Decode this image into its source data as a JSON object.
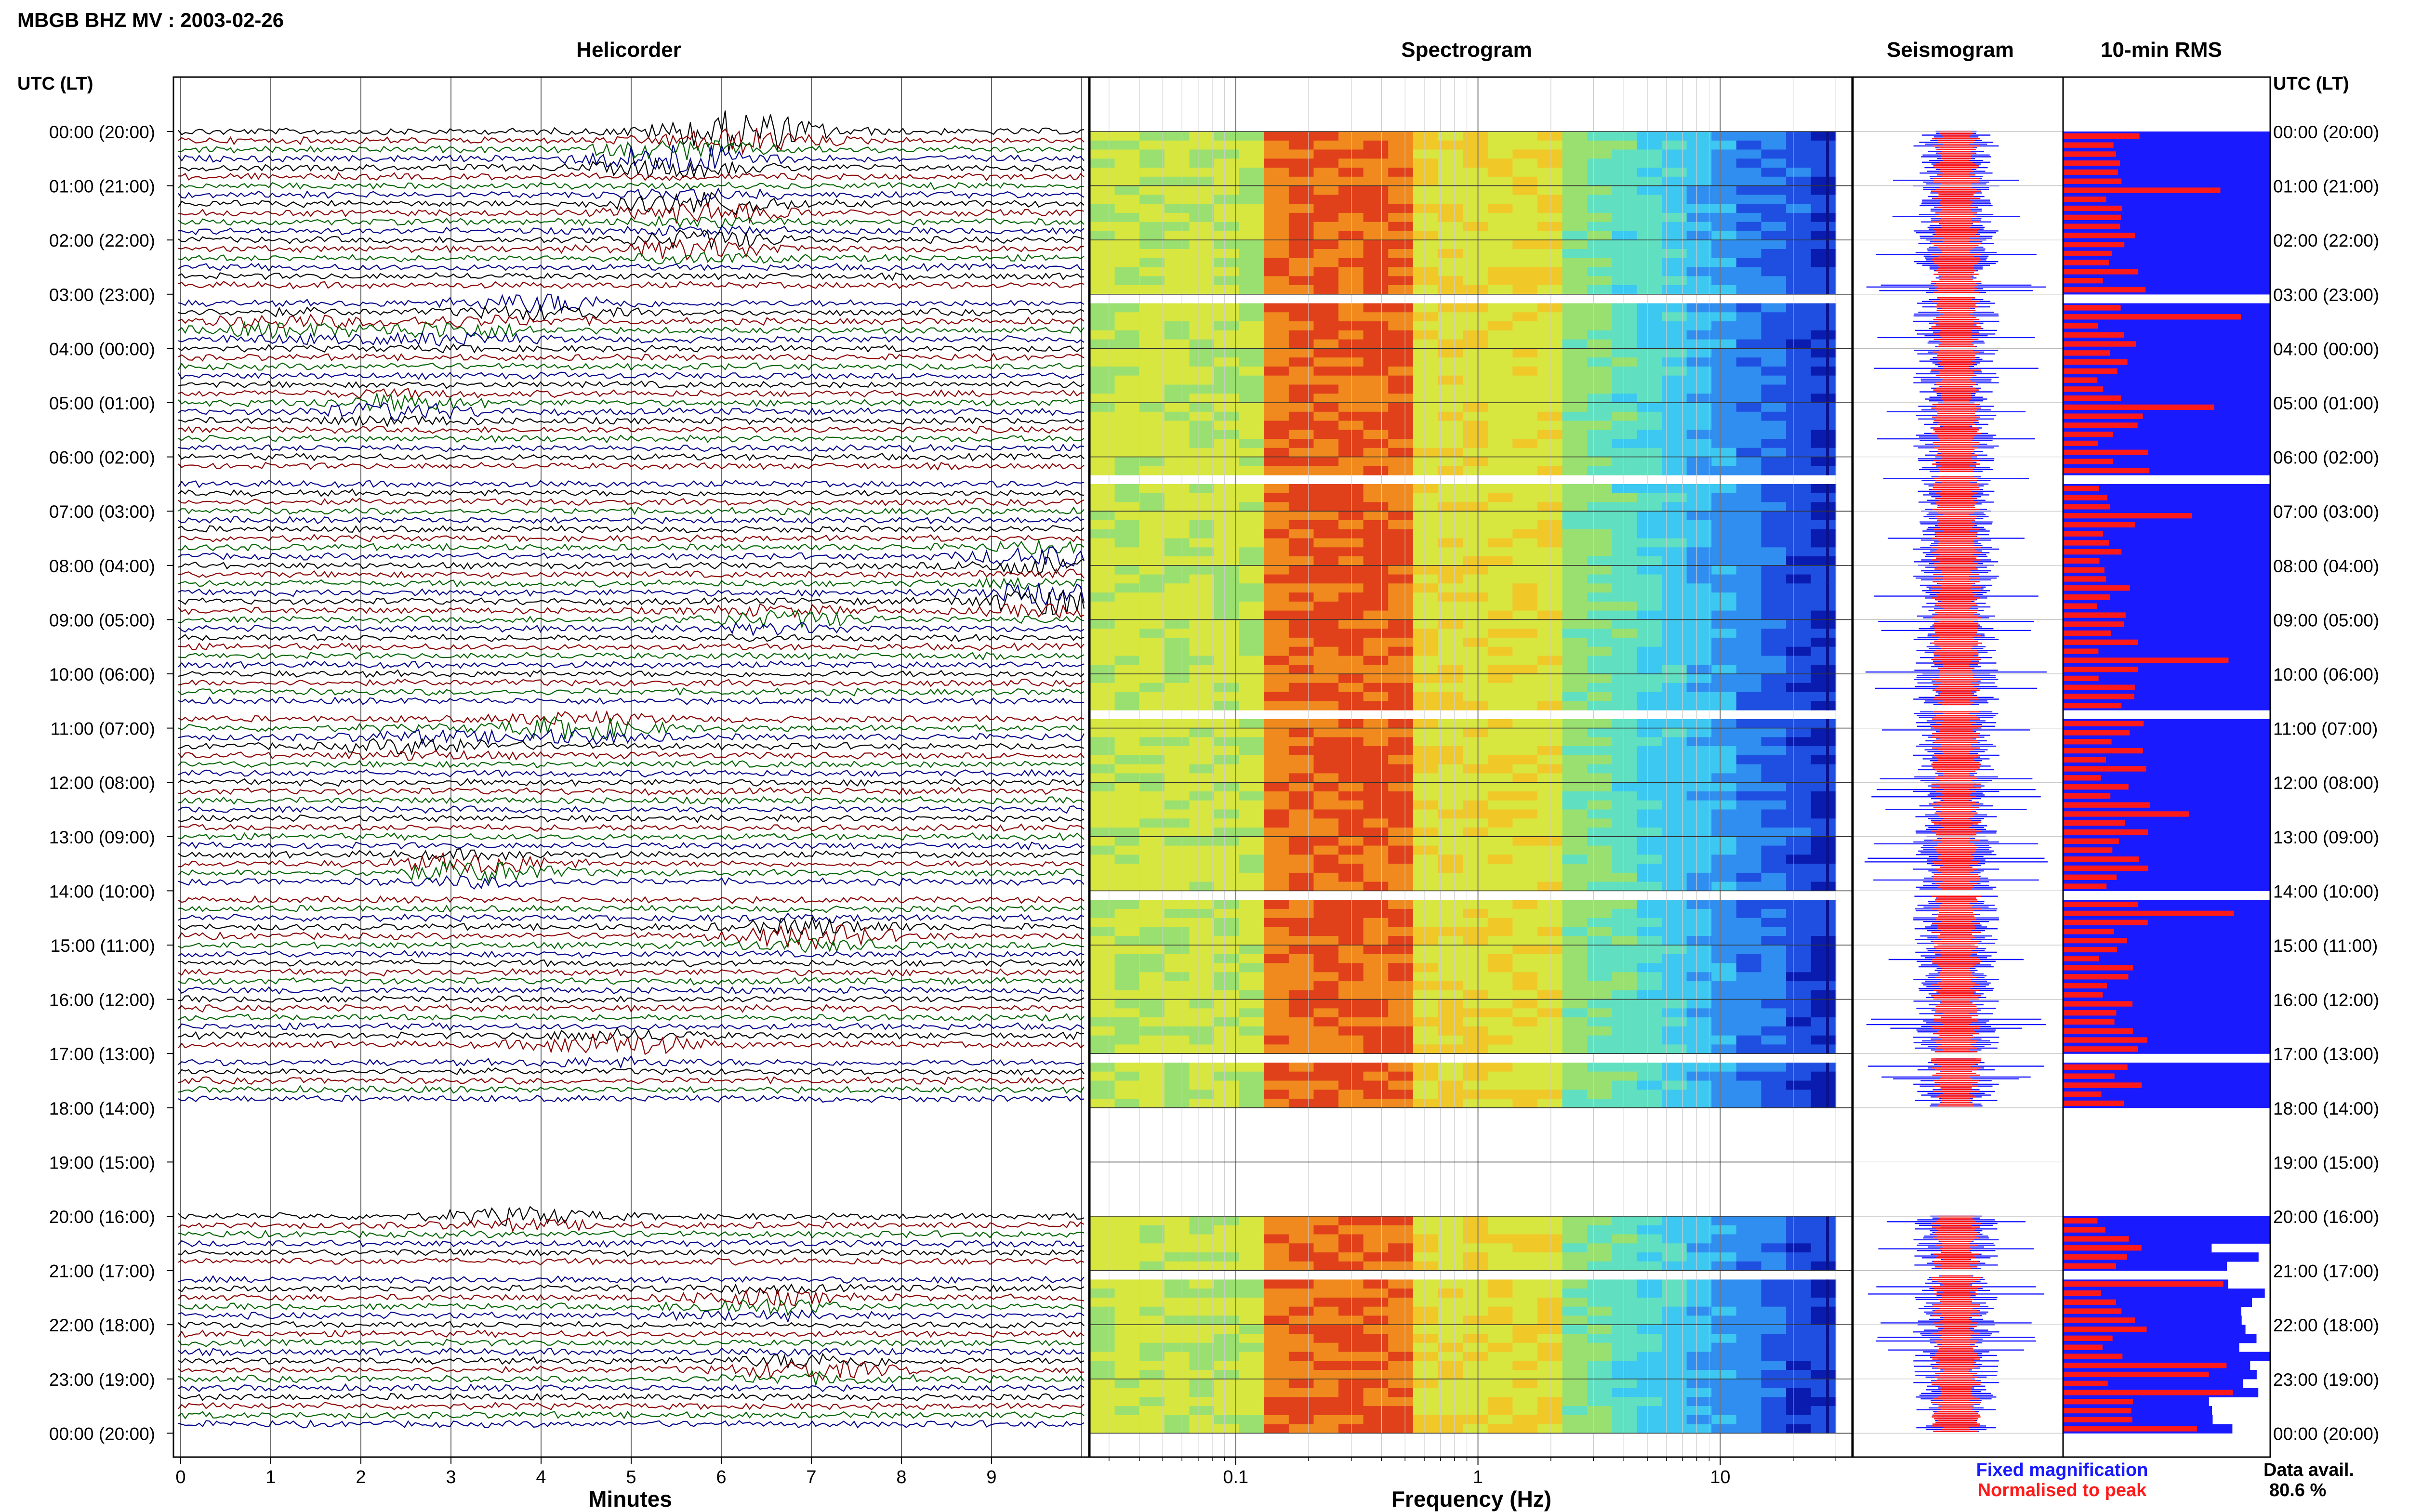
{
  "title": "MBGB BHZ MV : 2003-02-26",
  "utc_header_left": "UTC (LT)",
  "utc_header_right": "UTC (LT)",
  "panels": {
    "helicorder": "Helicorder",
    "spectrogram": "Spectrogram",
    "seismogram": "Seismogram",
    "rms": "10-min RMS"
  },
  "hour_labels": [
    "00:00 (20:00)",
    "01:00 (21:00)",
    "02:00 (22:00)",
    "03:00 (23:00)",
    "04:00 (00:00)",
    "05:00 (01:00)",
    "06:00 (02:00)",
    "07:00 (03:00)",
    "08:00 (04:00)",
    "09:00 (05:00)",
    "10:00 (06:00)",
    "11:00 (07:00)",
    "12:00 (08:00)",
    "13:00 (09:00)",
    "14:00 (10:00)",
    "15:00 (11:00)",
    "16:00 (12:00)",
    "17:00 (13:00)",
    "18:00 (14:00)",
    "19:00 (15:00)",
    "20:00 (16:00)",
    "21:00 (17:00)",
    "22:00 (18:00)",
    "23:00 (19:00)",
    "00:00 (20:00)"
  ],
  "legend": {
    "fixed": "Fixed magnification",
    "normalised": "Normalised to peak",
    "fixed_color": "#1a1aff",
    "normalised_color": "#ff1a1a",
    "avail_label": "Data avail.",
    "avail_value": "80.6 %"
  },
  "chart_data": [
    {
      "type": "line",
      "panel": "Helicorder",
      "xlabel": "Minutes",
      "ylabel": "",
      "x_ticks": [
        "0",
        "1",
        "2",
        "3",
        "4",
        "5",
        "6",
        "7",
        "8",
        "9"
      ],
      "xlim": [
        0,
        10
      ],
      "trace_colors": [
        "#000000",
        "#8b0000",
        "#006400",
        "#00008b"
      ],
      "data_gaps_utc": [
        [
          "18:00",
          "20:00"
        ]
      ]
    },
    {
      "type": "heatmap",
      "panel": "Spectrogram",
      "xlabel": "Frequency (Hz)",
      "x_scale": "log",
      "x_ticks": [
        "0.1",
        "1",
        "10"
      ],
      "xlim": [
        0.025,
        35
      ],
      "peak_band_hz": [
        0.2,
        0.45
      ]
    },
    {
      "type": "bar",
      "panel": "10-min RMS",
      "series": [
        {
          "name": "Fixed magnification",
          "color": "#1a1aff"
        },
        {
          "name": "Normalised to peak",
          "color": "#ff1a1a"
        }
      ]
    }
  ],
  "x_axis_labels": {
    "helicorder": "Minutes",
    "spectrogram": "Frequency (Hz)"
  }
}
